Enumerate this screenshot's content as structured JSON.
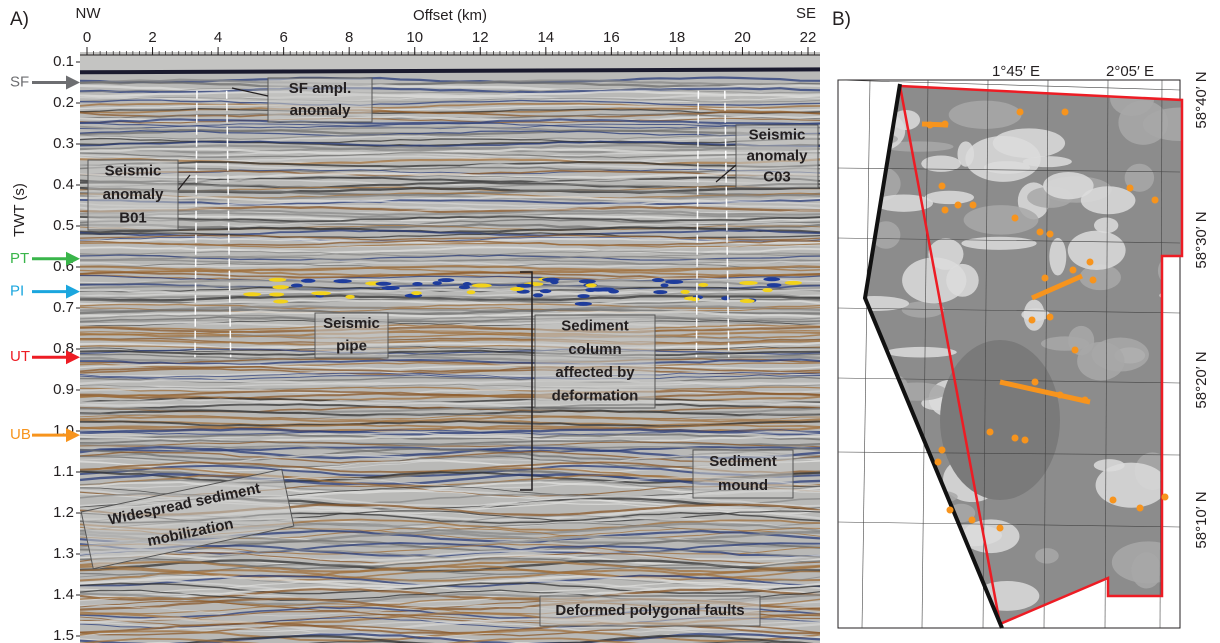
{
  "panel_a": {
    "label": "A)",
    "x_label": "Offset (km)",
    "left_end": "NW",
    "right_end": "SE",
    "y_label": "TWT (s)",
    "xlim": [
      0,
      22.4
    ],
    "xticks": [
      0,
      2,
      4,
      6,
      8,
      10,
      12,
      14,
      16,
      18,
      20,
      22
    ],
    "ylim": [
      0.1,
      1.5
    ],
    "yticks": [
      0.1,
      0.2,
      0.3,
      0.4,
      0.5,
      0.6,
      0.7,
      0.8,
      0.9,
      {
        "value": 1,
        "label": "1.0"
      },
      1.1,
      1.2,
      1.3,
      1.4,
      1.5
    ],
    "horizons": [
      {
        "name": "SF",
        "twt": 0.15,
        "color": "#6d6e71"
      },
      {
        "name": "PT",
        "twt": 0.58,
        "color": "#39b54a"
      },
      {
        "name": "PI",
        "twt": 0.66,
        "color": "#1ba6de"
      },
      {
        "name": "UT",
        "twt": 0.82,
        "color": "#ed1c24"
      },
      {
        "name": "UB",
        "twt": 1.01,
        "color": "#f7941d"
      }
    ],
    "annotations": [
      {
        "lines": [
          "SF ampl.",
          "anomaly"
        ]
      },
      {
        "lines": [
          "Seismic",
          "anomaly",
          "B01"
        ]
      },
      {
        "lines": [
          "Seismic",
          "anomaly",
          "C03"
        ]
      },
      {
        "lines": [
          "Seismic",
          "pipe"
        ]
      },
      {
        "lines": [
          "Sediment",
          "column",
          "affected by",
          "deformation"
        ]
      },
      {
        "lines": [
          "Sediment",
          "mound"
        ]
      },
      {
        "lines": [
          "Widespread sediment",
          "mobilization"
        ]
      },
      {
        "lines": [
          "Deformed polygonal faults"
        ]
      }
    ]
  },
  "panel_b": {
    "label": "B)",
    "lon_labels": [
      "1°45′ E",
      "2°05′ E"
    ],
    "lat_labels": [
      "58°40′ N",
      "58°30′ N",
      "58°20′ N",
      "58°10′ N"
    ]
  }
}
